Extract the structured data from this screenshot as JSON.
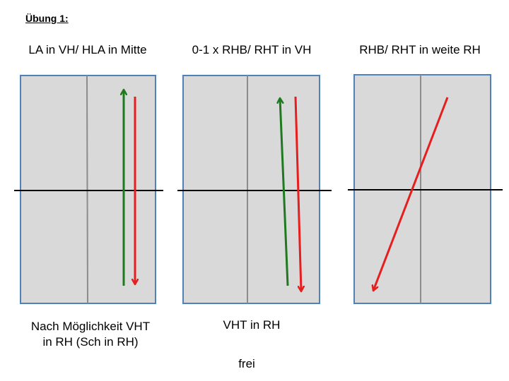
{
  "title": "Übung 1:",
  "panels": [
    {
      "heading": "LA in VH/ HLA in Mitte",
      "footer_lines": [
        "Nach Möglichkeit VHT",
        "in RH (Sch in RH)"
      ],
      "arrows": [
        {
          "color": "#1f7a1f",
          "direction": "up"
        },
        {
          "color": "#e61e1e",
          "direction": "down"
        }
      ]
    },
    {
      "heading": "0-1 x RHB/ RHT in VH",
      "footer_lines": [
        "VHT in RH"
      ],
      "arrows": [
        {
          "color": "#1f7a1f",
          "direction": "up"
        },
        {
          "color": "#e61e1e",
          "direction": "down"
        }
      ]
    },
    {
      "heading": "RHB/ RHT in weite RH",
      "footer_lines": [],
      "arrows": [
        {
          "color": "#e61e1e",
          "direction": "down-left"
        }
      ]
    }
  ],
  "note": "frei",
  "colors": {
    "field_fill": "#d9d9d9",
    "field_border": "#4f81bd",
    "center_line": "#8c8c8c",
    "net_line": "#000000",
    "green_arrow": "#1f7a1f",
    "red_arrow": "#e61e1e"
  }
}
